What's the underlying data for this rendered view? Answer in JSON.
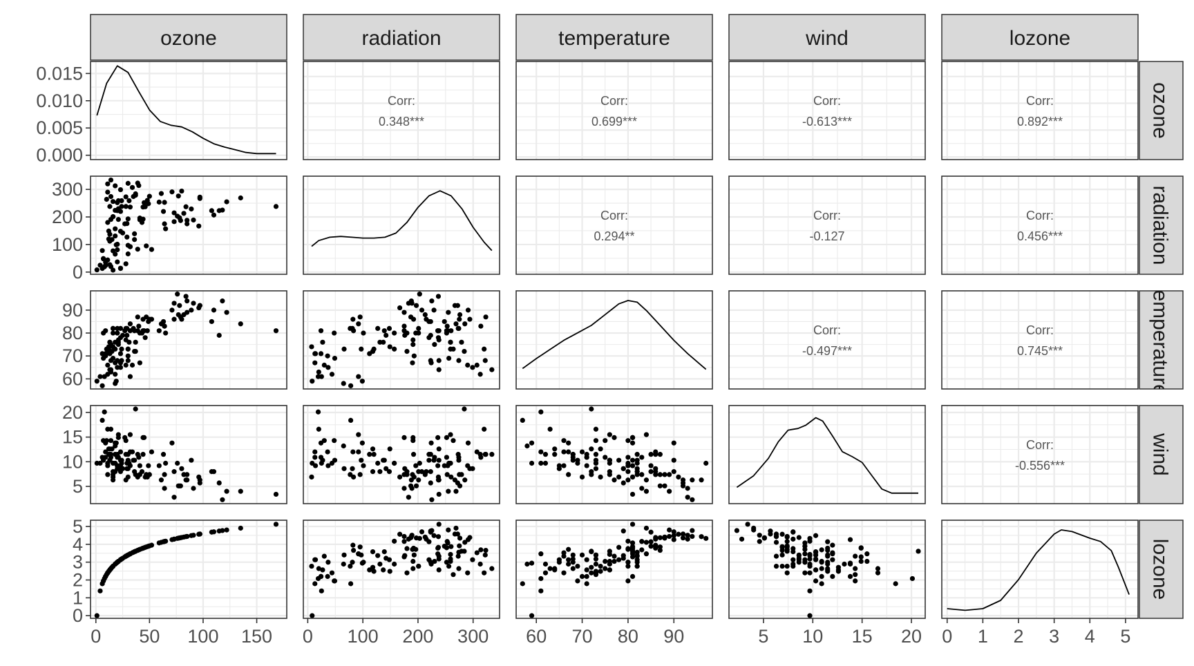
{
  "chart_data": {
    "type": "scatter",
    "variables": [
      "ozone",
      "radiation",
      "temperature",
      "wind",
      "lozone"
    ],
    "grid": true,
    "axes": {
      "ozone": {
        "range": [
          -5,
          178
        ],
        "ticks": [
          0,
          50,
          100,
          150
        ],
        "tick_labels": [
          "0",
          "50",
          "100",
          "150"
        ]
      },
      "radiation": {
        "range": [
          -8,
          348
        ],
        "ticks": [
          0,
          100,
          200,
          300
        ],
        "tick_labels": [
          "0",
          "100",
          "200",
          "300"
        ]
      },
      "temperature": {
        "range": [
          55.6,
          98.4
        ],
        "ticks": [
          60,
          70,
          80,
          90
        ],
        "tick_labels": [
          "60",
          "70",
          "80",
          "90"
        ]
      },
      "wind": {
        "range": [
          1.5,
          21.4
        ],
        "ticks": [
          5,
          10,
          15,
          20
        ],
        "tick_labels": [
          "5",
          "10",
          "15",
          "20"
        ]
      },
      "lozone": {
        "range": [
          -0.15,
          5.35
        ],
        "ticks": [
          0,
          1,
          2,
          3,
          4,
          5
        ],
        "tick_labels": [
          "0",
          "1",
          "2",
          "3",
          "4",
          "5"
        ]
      }
    },
    "density_axis": {
      "range": [
        -0.0008,
        0.0172
      ],
      "ticks": [
        0,
        0.005,
        0.01,
        0.015
      ],
      "tick_labels": [
        "0.000",
        "0.005",
        "0.010",
        "0.015"
      ]
    },
    "correlations": [
      {
        "row": "ozone",
        "col": "radiation",
        "label": "Corr:",
        "value": "0.348***"
      },
      {
        "row": "ozone",
        "col": "temperature",
        "label": "Corr:",
        "value": "0.699***"
      },
      {
        "row": "ozone",
        "col": "wind",
        "label": "Corr:",
        "value": "-0.613***"
      },
      {
        "row": "ozone",
        "col": "lozone",
        "label": "Corr:",
        "value": "0.892***"
      },
      {
        "row": "radiation",
        "col": "temperature",
        "label": "Corr:",
        "value": "0.294**"
      },
      {
        "row": "radiation",
        "col": "wind",
        "label": "Corr:",
        "value": "-0.127"
      },
      {
        "row": "radiation",
        "col": "lozone",
        "label": "Corr:",
        "value": "0.456***"
      },
      {
        "row": "temperature",
        "col": "wind",
        "label": "Corr:",
        "value": "-0.497***"
      },
      {
        "row": "temperature",
        "col": "lozone",
        "label": "Corr:",
        "value": "0.745***"
      },
      {
        "row": "wind",
        "col": "lozone",
        "label": "Corr:",
        "value": "-0.556***"
      }
    ],
    "densities": {
      "ozone": [
        [
          1,
          0.0073
        ],
        [
          10,
          0.0132
        ],
        [
          20,
          0.0164
        ],
        [
          30,
          0.0152
        ],
        [
          40,
          0.0117
        ],
        [
          50,
          0.0083
        ],
        [
          60,
          0.0062
        ],
        [
          70,
          0.0055
        ],
        [
          80,
          0.0052
        ],
        [
          90,
          0.0043
        ],
        [
          100,
          0.0031
        ],
        [
          110,
          0.0021
        ],
        [
          120,
          0.0015
        ],
        [
          130,
          0.001
        ],
        [
          140,
          0.0005
        ],
        [
          150,
          0.0003
        ],
        [
          160,
          0.0003
        ],
        [
          168,
          0.0003
        ]
      ],
      "radiation": [
        [
          7,
          0.27
        ],
        [
          20,
          0.34
        ],
        [
          40,
          0.38
        ],
        [
          60,
          0.39
        ],
        [
          80,
          0.38
        ],
        [
          100,
          0.37
        ],
        [
          120,
          0.37
        ],
        [
          140,
          0.38
        ],
        [
          160,
          0.43
        ],
        [
          180,
          0.56
        ],
        [
          200,
          0.74
        ],
        [
          220,
          0.88
        ],
        [
          240,
          0.94
        ],
        [
          260,
          0.88
        ],
        [
          280,
          0.72
        ],
        [
          300,
          0.5
        ],
        [
          320,
          0.32
        ],
        [
          334,
          0.22
        ]
      ],
      "temperature": [
        [
          57,
          0.18
        ],
        [
          60,
          0.3
        ],
        [
          63,
          0.41
        ],
        [
          66,
          0.52
        ],
        [
          69,
          0.61
        ],
        [
          72,
          0.7
        ],
        [
          75,
          0.83
        ],
        [
          78,
          0.96
        ],
        [
          80,
          1.0
        ],
        [
          82,
          0.98
        ],
        [
          84,
          0.88
        ],
        [
          87,
          0.7
        ],
        [
          90,
          0.52
        ],
        [
          93,
          0.36
        ],
        [
          97,
          0.17
        ]
      ],
      "wind": [
        [
          2.3,
          0.13
        ],
        [
          4,
          0.27
        ],
        [
          5.5,
          0.48
        ],
        [
          6.5,
          0.68
        ],
        [
          7.5,
          0.82
        ],
        [
          8.5,
          0.84
        ],
        [
          9.3,
          0.88
        ],
        [
          10.3,
          0.97
        ],
        [
          11,
          0.93
        ],
        [
          12,
          0.75
        ],
        [
          13,
          0.56
        ],
        [
          14,
          0.5
        ],
        [
          15,
          0.43
        ],
        [
          16,
          0.27
        ],
        [
          17,
          0.11
        ],
        [
          18,
          0.06
        ],
        [
          19.5,
          0.06
        ],
        [
          20.7,
          0.06
        ]
      ],
      "lozone": [
        [
          0,
          0.05
        ],
        [
          0.5,
          0.03
        ],
        [
          1,
          0.05
        ],
        [
          1.5,
          0.15
        ],
        [
          2,
          0.4
        ],
        [
          2.5,
          0.72
        ],
        [
          3,
          0.95
        ],
        [
          3.2,
          1.0
        ],
        [
          3.5,
          0.98
        ],
        [
          4,
          0.9
        ],
        [
          4.3,
          0.86
        ],
        [
          4.6,
          0.75
        ],
        [
          4.8,
          0.55
        ],
        [
          5.1,
          0.22
        ]
      ]
    },
    "observations": [
      [
        41,
        190,
        67,
        7.4
      ],
      [
        36,
        118,
        72,
        8.0
      ],
      [
        12,
        149,
        74,
        12.6
      ],
      [
        18,
        313,
        62,
        11.5
      ],
      [
        28,
        30,
        66,
        14.3
      ],
      [
        23,
        299,
        65,
        8.6
      ],
      [
        19,
        99,
        59,
        13.8
      ],
      [
        8,
        19,
        61,
        20.1
      ],
      [
        16,
        256,
        69,
        9.7
      ],
      [
        11,
        290,
        66,
        9.2
      ],
      [
        14,
        274,
        68,
        10.9
      ],
      [
        18,
        65,
        58,
        13.2
      ],
      [
        14,
        334,
        64,
        11.5
      ],
      [
        34,
        307,
        66,
        12.0
      ],
      [
        6,
        78,
        57,
        18.4
      ],
      [
        30,
        322,
        68,
        11.5
      ],
      [
        11,
        44,
        62,
        9.7
      ],
      [
        1,
        8,
        59,
        9.7
      ],
      [
        11,
        320,
        73,
        16.6
      ],
      [
        4,
        25,
        61,
        9.7
      ],
      [
        32,
        92,
        61,
        12.0
      ],
      [
        23,
        13,
        67,
        12.0
      ],
      [
        45,
        252,
        81,
        14.9
      ],
      [
        115,
        223,
        79,
        5.7
      ],
      [
        37,
        279,
        76,
        7.4
      ],
      [
        29,
        127,
        82,
        9.7
      ],
      [
        71,
        291,
        90,
        13.8
      ],
      [
        39,
        323,
        87,
        11.5
      ],
      [
        23,
        148,
        82,
        8.0
      ],
      [
        21,
        191,
        77,
        14.9
      ],
      [
        37,
        284,
        72,
        20.7
      ],
      [
        20,
        37,
        65,
        9.2
      ],
      [
        12,
        120,
        73,
        11.5
      ],
      [
        13,
        137,
        76,
        10.3
      ],
      [
        135,
        269,
        84,
        4.0
      ],
      [
        49,
        248,
        85,
        9.2
      ],
      [
        32,
        236,
        81,
        9.2
      ],
      [
        64,
        175,
        83,
        4.6
      ],
      [
        40,
        314,
        83,
        10.9
      ],
      [
        77,
        276,
        88,
        5.1
      ],
      [
        97,
        267,
        92,
        6.3
      ],
      [
        97,
        272,
        92,
        5.7
      ],
      [
        85,
        175,
        89,
        7.4
      ],
      [
        10,
        264,
        73,
        14.3
      ],
      [
        27,
        175,
        81,
        14.9
      ],
      [
        7,
        48,
        80,
        14.3
      ],
      [
        48,
        260,
        81,
        6.9
      ],
      [
        35,
        274,
        82,
        10.3
      ],
      [
        61,
        285,
        84,
        6.3
      ],
      [
        79,
        187,
        87,
        5.1
      ],
      [
        63,
        220,
        85,
        11.5
      ],
      [
        16,
        7,
        74,
        6.9
      ],
      [
        80,
        294,
        86,
        8.6
      ],
      [
        108,
        223,
        85,
        8.0
      ],
      [
        20,
        81,
        82,
        8.6
      ],
      [
        52,
        82,
        86,
        12.0
      ],
      [
        82,
        213,
        88,
        7.4
      ],
      [
        50,
        275,
        86,
        7.4
      ],
      [
        64,
        253,
        83,
        7.4
      ],
      [
        59,
        254,
        81,
        9.2
      ],
      [
        39,
        83,
        81,
        6.9
      ],
      [
        9,
        24,
        81,
        13.8
      ],
      [
        16,
        77,
        82,
        7.4
      ],
      [
        122,
        255,
        89,
        4.0
      ],
      [
        89,
        229,
        90,
        10.3
      ],
      [
        110,
        207,
        90,
        8.0
      ],
      [
        44,
        192,
        86,
        11.5
      ],
      [
        28,
        273,
        82,
        11.5
      ],
      [
        65,
        157,
        80,
        9.7
      ],
      [
        168,
        238,
        81,
        3.4
      ],
      [
        73,
        215,
        86,
        8.0
      ],
      [
        76,
        203,
        97,
        9.7
      ],
      [
        118,
        225,
        94,
        2.3
      ],
      [
        84,
        237,
        96,
        6.3
      ],
      [
        85,
        188,
        94,
        6.3
      ],
      [
        96,
        167,
        91,
        6.9
      ],
      [
        78,
        197,
        92,
        5.1
      ],
      [
        73,
        183,
        93,
        2.8
      ],
      [
        91,
        189,
        93,
        4.6
      ],
      [
        47,
        95,
        87,
        7.4
      ],
      [
        32,
        92,
        84,
        15.5
      ],
      [
        20,
        252,
        80,
        10.9
      ],
      [
        23,
        220,
        78,
        10.3
      ],
      [
        21,
        230,
        75,
        10.9
      ],
      [
        24,
        259,
        73,
        9.7
      ],
      [
        44,
        236,
        81,
        14.9
      ],
      [
        21,
        259,
        76,
        15.5
      ],
      [
        28,
        238,
        77,
        6.3
      ],
      [
        9,
        24,
        71,
        10.9
      ],
      [
        13,
        112,
        71,
        11.5
      ],
      [
        46,
        237,
        78,
        6.9
      ],
      [
        18,
        224,
        67,
        13.8
      ],
      [
        13,
        27,
        76,
        10.3
      ],
      [
        24,
        238,
        68,
        10.3
      ],
      [
        16,
        201,
        82,
        8.0
      ],
      [
        13,
        238,
        64,
        12.6
      ],
      [
        23,
        14,
        71,
        9.2
      ],
      [
        36,
        139,
        81,
        10.3
      ],
      [
        7,
        49,
        69,
        10.3
      ],
      [
        14,
        20,
        63,
        16.6
      ],
      [
        30,
        193,
        70,
        6.9
      ],
      [
        14,
        191,
        75,
        14.3
      ],
      [
        18,
        131,
        76,
        8.0
      ],
      [
        20,
        223,
        68,
        11.5
      ],
      [
        25,
        142,
        79,
        8.6
      ],
      [
        30,
        66,
        73,
        8.6
      ],
      [
        11,
        180,
        72,
        7.4
      ],
      [
        20,
        101,
        80,
        9.2
      ],
      [
        15,
        118,
        72,
        12.6
      ],
      [
        31,
        259,
        76,
        9.7
      ],
      [
        18,
        157,
        73,
        9.7
      ],
      [
        43,
        180,
        80,
        8.0
      ],
      [
        29,
        176,
        79,
        8.6
      ],
      [
        9,
        36,
        70,
        12.0
      ],
      [
        16,
        201,
        80,
        6.3
      ],
      [
        30,
        97,
        73,
        10.3
      ],
      [
        6,
        13,
        71,
        10.9
      ],
      [
        41,
        196,
        80,
        9.2
      ]
    ]
  }
}
